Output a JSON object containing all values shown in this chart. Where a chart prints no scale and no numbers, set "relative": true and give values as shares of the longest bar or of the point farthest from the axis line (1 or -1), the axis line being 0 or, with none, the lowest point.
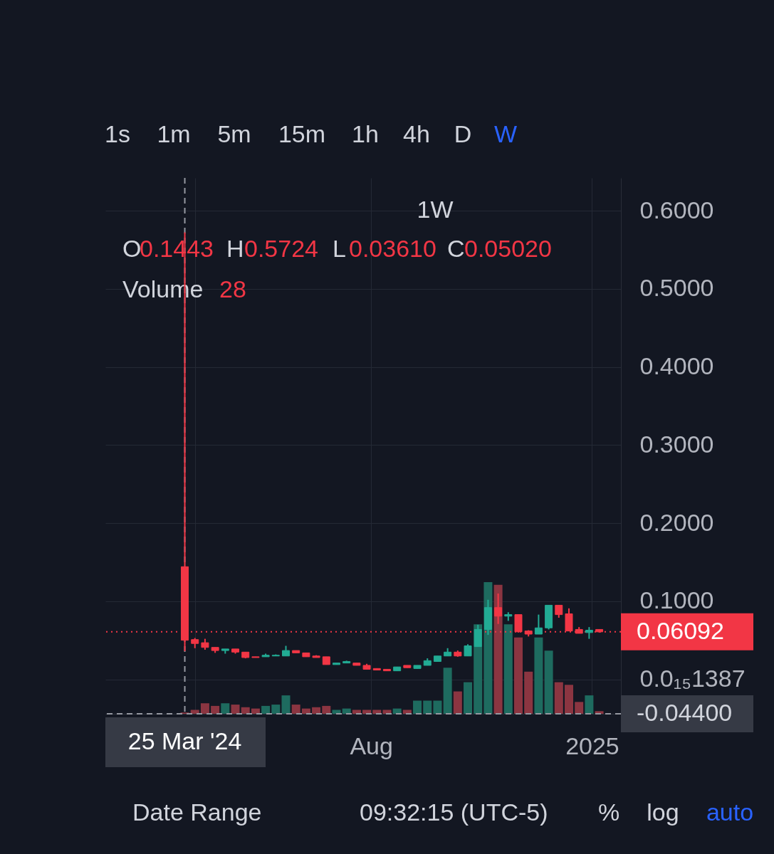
{
  "chart_data": [
    {
      "type": "candlestick",
      "x": [
        "2024-03-25",
        "2024-04-01",
        "2024-04-08",
        "2024-04-15",
        "2024-04-22",
        "2024-04-29",
        "2024-05-06",
        "2024-05-13",
        "2024-05-20",
        "2024-05-27",
        "2024-06-03",
        "2024-06-10",
        "2024-06-17",
        "2024-06-24",
        "2024-07-01",
        "2024-07-08",
        "2024-07-15",
        "2024-07-22",
        "2024-07-29",
        "2024-08-05",
        "2024-08-12",
        "2024-08-19",
        "2024-08-26",
        "2024-09-02",
        "2024-09-09",
        "2024-09-16",
        "2024-09-23",
        "2024-09-30",
        "2024-10-07",
        "2024-10-14",
        "2024-10-21",
        "2024-10-28",
        "2024-11-04",
        "2024-11-11",
        "2024-11-18",
        "2024-11-25",
        "2024-12-02",
        "2024-12-09",
        "2024-12-16",
        "2024-12-23",
        "2024-12-30",
        "2025-01-06"
      ],
      "ohlc": [
        [
          0.1443,
          0.5724,
          0.0361,
          0.0502
        ],
        [
          0.051,
          0.053,
          0.04,
          0.046
        ],
        [
          0.047,
          0.052,
          0.038,
          0.041
        ],
        [
          0.041,
          0.041,
          0.034,
          0.037
        ],
        [
          0.037,
          0.039,
          0.033,
          0.039
        ],
        [
          0.039,
          0.039,
          0.033,
          0.035
        ],
        [
          0.035,
          0.035,
          0.027,
          0.028
        ],
        [
          0.029,
          0.029,
          0.028,
          0.028
        ],
        [
          0.029,
          0.033,
          0.029,
          0.031
        ],
        [
          0.03,
          0.032,
          0.03,
          0.031
        ],
        [
          0.03,
          0.043,
          0.03,
          0.037
        ],
        [
          0.037,
          0.037,
          0.034,
          0.034
        ],
        [
          0.034,
          0.034,
          0.029,
          0.029
        ],
        [
          0.03,
          0.031,
          0.028,
          0.028
        ],
        [
          0.029,
          0.029,
          0.019,
          0.019
        ],
        [
          0.019,
          0.021,
          0.019,
          0.021
        ],
        [
          0.021,
          0.024,
          0.021,
          0.023
        ],
        [
          0.021,
          0.021,
          0.018,
          0.018
        ],
        [
          0.018,
          0.02,
          0.013,
          0.013
        ],
        [
          0.014,
          0.014,
          0.012,
          0.012
        ],
        [
          0.013,
          0.013,
          0.011,
          0.011
        ],
        [
          0.011,
          0.016,
          0.011,
          0.016
        ],
        [
          0.018,
          0.018,
          0.015,
          0.015
        ],
        [
          0.014,
          0.018,
          0.014,
          0.018
        ],
        [
          0.018,
          0.027,
          0.018,
          0.024
        ],
        [
          0.023,
          0.03,
          0.023,
          0.03
        ],
        [
          0.03,
          0.04,
          0.03,
          0.035
        ],
        [
          0.035,
          0.037,
          0.029,
          0.03
        ],
        [
          0.03,
          0.045,
          0.03,
          0.043
        ],
        [
          0.042,
          0.07,
          0.042,
          0.064
        ],
        [
          0.064,
          0.102,
          0.057,
          0.092
        ],
        [
          0.092,
          0.11,
          0.071,
          0.081
        ],
        [
          0.081,
          0.086,
          0.075,
          0.083
        ],
        [
          0.083,
          0.083,
          0.06,
          0.061
        ],
        [
          0.062,
          0.063,
          0.055,
          0.058
        ],
        [
          0.058,
          0.083,
          0.058,
          0.066
        ],
        [
          0.066,
          0.095,
          0.064,
          0.095
        ],
        [
          0.095,
          0.095,
          0.079,
          0.083
        ],
        [
          0.084,
          0.091,
          0.062,
          0.062
        ],
        [
          0.064,
          0.067,
          0.059,
          0.059
        ],
        [
          0.06,
          0.067,
          0.052,
          0.063
        ],
        [
          0.064,
          0.064,
          0.06,
          0.06092
        ]
      ],
      "colors": [
        "#f23645",
        "#f23645",
        "#f23645",
        "#f23645",
        "#22ab94",
        "#f23645",
        "#f23645",
        "#f23645",
        "#22ab94",
        "#22ab94",
        "#22ab94",
        "#f23645",
        "#f23645",
        "#f23645",
        "#f23645",
        "#22ab94",
        "#22ab94",
        "#f23645",
        "#f23645",
        "#f23645",
        "#f23645",
        "#22ab94",
        "#f23645",
        "#22ab94",
        "#22ab94",
        "#22ab94",
        "#22ab94",
        "#f23645",
        "#22ab94",
        "#22ab94",
        "#22ab94",
        "#f23645",
        "#22ab94",
        "#f23645",
        "#f23645",
        "#22ab94",
        "#22ab94",
        "#f23645",
        "#f23645",
        "#f23645",
        "#22ab94",
        "#f23645"
      ],
      "xlim": [
        "2024-01-30",
        "2025-01-21"
      ],
      "ylim": [
        -0.044,
        0.642
      ],
      "xticks": [
        {
          "value": "2024-04-01",
          "label": null
        },
        {
          "value": "2024-08-01",
          "label": "Aug"
        },
        {
          "value": "2025-01-01",
          "label": "2025"
        }
      ],
      "yticks": [
        {
          "value": 0,
          "label": "0.0₁₅1387"
        },
        {
          "value": 0.1,
          "label": "0.1000"
        },
        {
          "value": 0.2,
          "label": "0.2000"
        },
        {
          "value": 0.3,
          "label": "0.3000"
        },
        {
          "value": 0.4,
          "label": "0.4000"
        },
        {
          "value": 0.5,
          "label": "0.5000"
        },
        {
          "value": 0.6,
          "label": "0.6000"
        }
      ],
      "grid": true,
      "ref_lines": [
        {
          "axis": "y",
          "value": 0.06092,
          "label": "0.06092",
          "color": "#f23645",
          "line_style": "dotted"
        },
        {
          "axis": "x",
          "value": "2024-03-25",
          "label": "25 Mar '24",
          "color": "#9598a1",
          "line_style": "dashed"
        },
        {
          "axis": "y",
          "value": -0.044,
          "label": "-0.04400",
          "color": "#9598a1",
          "line_style": "dashed"
        }
      ],
      "annotations": [
        "1s",
        "1m",
        "5m",
        "15m",
        "1h",
        "4h",
        "D",
        "W",
        "1W",
        "O",
        "0.1443",
        "H",
        "0.5724",
        "L",
        "0.03610",
        "C",
        "0.05020",
        "Date Range",
        "09:32:15 (UTC-5)",
        "%",
        "log",
        "auto"
      ]
    },
    {
      "type": "bar",
      "x": [
        "2024-03-25",
        "2024-04-01",
        "2024-04-08",
        "2024-04-15",
        "2024-04-22",
        "2024-04-29",
        "2024-05-06",
        "2024-05-13",
        "2024-05-20",
        "2024-05-27",
        "2024-06-03",
        "2024-06-10",
        "2024-06-17",
        "2024-06-24",
        "2024-07-01",
        "2024-07-08",
        "2024-07-15",
        "2024-07-22",
        "2024-07-29",
        "2024-08-05",
        "2024-08-12",
        "2024-08-19",
        "2024-08-26",
        "2024-09-02",
        "2024-09-09",
        "2024-09-16",
        "2024-09-23",
        "2024-09-30",
        "2024-10-07",
        "2024-10-14",
        "2024-10-21",
        "2024-10-28",
        "2024-11-04",
        "2024-11-11",
        "2024-11-18",
        "2024-11-25",
        "2024-12-02",
        "2024-12-09",
        "2024-12-16",
        "2024-12-23",
        "2024-12-30",
        "2025-01-06"
      ],
      "values": [
        0.01,
        0.03,
        0.08,
        0.06,
        0.08,
        0.07,
        0.05,
        0.04,
        0.06,
        0.07,
        0.14,
        0.07,
        0.04,
        0.05,
        0.06,
        0.03,
        0.04,
        0.03,
        0.03,
        0.03,
        0.03,
        0.04,
        0.03,
        0.1,
        0.1,
        0.1,
        0.35,
        0.17,
        0.24,
        0.68,
        1,
        0.98,
        0.68,
        0.58,
        0.32,
        0.58,
        0.48,
        0.24,
        0.22,
        0.09,
        0.14,
        0.02
      ],
      "colors": [
        "#8b3541",
        "#8b3541",
        "#8b3541",
        "#8b3541",
        "#1e6b5f",
        "#8b3541",
        "#8b3541",
        "#8b3541",
        "#1e6b5f",
        "#1e6b5f",
        "#1e6b5f",
        "#8b3541",
        "#8b3541",
        "#8b3541",
        "#8b3541",
        "#1e6b5f",
        "#1e6b5f",
        "#8b3541",
        "#8b3541",
        "#8b3541",
        "#8b3541",
        "#1e6b5f",
        "#8b3541",
        "#1e6b5f",
        "#1e6b5f",
        "#1e6b5f",
        "#1e6b5f",
        "#8b3541",
        "#1e6b5f",
        "#1e6b5f",
        "#1e6b5f",
        "#8b3541",
        "#1e6b5f",
        "#8b3541",
        "#8b3541",
        "#1e6b5f",
        "#1e6b5f",
        "#8b3541",
        "#8b3541",
        "#8b3541",
        "#1e6b5f",
        "#8b3541"
      ],
      "relative": true,
      "xlim": [
        "2024-01-30",
        "2025-01-21"
      ],
      "tick_labels": false,
      "annotations": [
        "Volume",
        "28"
      ]
    }
  ]
}
